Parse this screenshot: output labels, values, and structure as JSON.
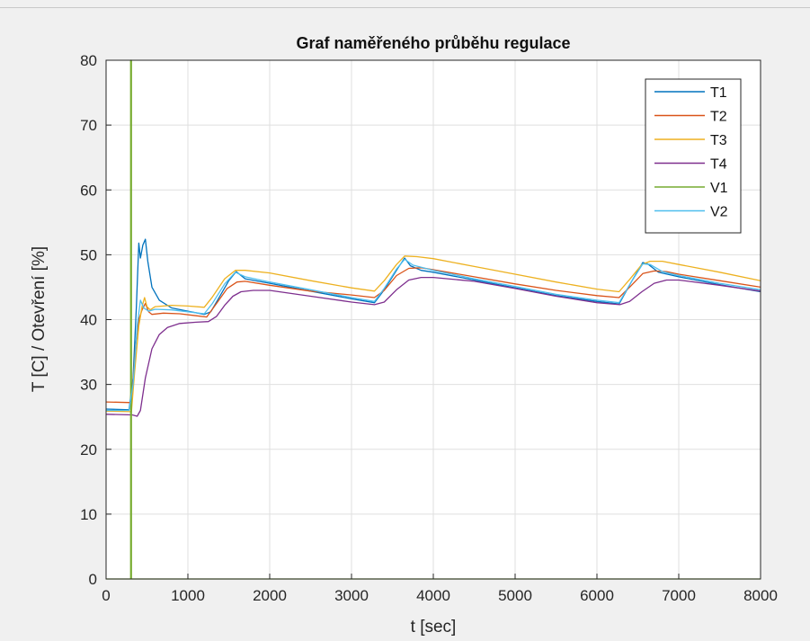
{
  "chart_data": {
    "type": "line",
    "title": "Graf naměřeného průběhu regulace",
    "xlabel": "t [sec]",
    "ylabel": "T [C] / Otevření [%]",
    "xlim": [
      0,
      8000
    ],
    "ylim": [
      0,
      80
    ],
    "xticks": [
      0,
      1000,
      2000,
      3000,
      4000,
      5000,
      6000,
      7000,
      8000
    ],
    "yticks": [
      0,
      10,
      20,
      30,
      40,
      50,
      60,
      70,
      80
    ],
    "grid": true,
    "legend_position": "top-right",
    "series": [
      {
        "name": "T1",
        "color": "#0072bd",
        "points": [
          [
            0,
            26.2
          ],
          [
            280,
            26.1
          ],
          [
            330,
            31
          ],
          [
            370,
            42
          ],
          [
            400,
            51.8
          ],
          [
            420,
            49.5
          ],
          [
            450,
            51.5
          ],
          [
            480,
            52.4
          ],
          [
            510,
            49
          ],
          [
            560,
            45
          ],
          [
            650,
            43
          ],
          [
            800,
            41.8
          ],
          [
            1000,
            41.3
          ],
          [
            1200,
            40.8
          ],
          [
            1280,
            41.2
          ],
          [
            1400,
            43.8
          ],
          [
            1500,
            46
          ],
          [
            1590,
            47.4
          ],
          [
            1700,
            46.3
          ],
          [
            2000,
            45.6
          ],
          [
            2500,
            44.4
          ],
          [
            3000,
            43.2
          ],
          [
            3280,
            42.6
          ],
          [
            3400,
            44.6
          ],
          [
            3560,
            47.8
          ],
          [
            3650,
            49.5
          ],
          [
            3720,
            48.3
          ],
          [
            3850,
            47.6
          ],
          [
            4000,
            47.3
          ],
          [
            4500,
            46.1
          ],
          [
            5000,
            44.9
          ],
          [
            5500,
            43.7
          ],
          [
            6000,
            42.8
          ],
          [
            6270,
            42.4
          ],
          [
            6420,
            45.8
          ],
          [
            6560,
            48.8
          ],
          [
            6620,
            48.6
          ],
          [
            6750,
            47.3
          ],
          [
            7000,
            46.6
          ],
          [
            7500,
            45.4
          ],
          [
            8000,
            44.3
          ]
        ]
      },
      {
        "name": "T2",
        "color": "#d95319",
        "points": [
          [
            0,
            27.3
          ],
          [
            310,
            27.2
          ],
          [
            360,
            36
          ],
          [
            400,
            40
          ],
          [
            440,
            41.5
          ],
          [
            480,
            42.5
          ],
          [
            520,
            41.2
          ],
          [
            560,
            40.8
          ],
          [
            700,
            41
          ],
          [
            900,
            40.9
          ],
          [
            1100,
            40.6
          ],
          [
            1230,
            40.4
          ],
          [
            1350,
            42.5
          ],
          [
            1480,
            44.8
          ],
          [
            1600,
            45.8
          ],
          [
            1700,
            45.9
          ],
          [
            2000,
            45.3
          ],
          [
            2500,
            44.4
          ],
          [
            3000,
            43.8
          ],
          [
            3280,
            43.4
          ],
          [
            3400,
            44.5
          ],
          [
            3550,
            46.8
          ],
          [
            3700,
            47.9
          ],
          [
            3850,
            48
          ],
          [
            4000,
            47.7
          ],
          [
            4500,
            46.6
          ],
          [
            5000,
            45.5
          ],
          [
            5500,
            44.5
          ],
          [
            6000,
            43.7
          ],
          [
            6270,
            43.4
          ],
          [
            6400,
            45
          ],
          [
            6560,
            47.1
          ],
          [
            6700,
            47.5
          ],
          [
            6850,
            47.4
          ],
          [
            7000,
            47
          ],
          [
            7500,
            46
          ],
          [
            8000,
            45
          ]
        ]
      },
      {
        "name": "T3",
        "color": "#edb120",
        "points": [
          [
            0,
            25.9
          ],
          [
            310,
            25.8
          ],
          [
            350,
            32
          ],
          [
            400,
            39
          ],
          [
            440,
            42
          ],
          [
            470,
            43.4
          ],
          [
            500,
            42
          ],
          [
            540,
            41.5
          ],
          [
            600,
            42
          ],
          [
            800,
            42.2
          ],
          [
            1000,
            42.1
          ],
          [
            1200,
            41.9
          ],
          [
            1300,
            43.5
          ],
          [
            1450,
            46.3
          ],
          [
            1580,
            47.6
          ],
          [
            1700,
            47.6
          ],
          [
            2000,
            47.2
          ],
          [
            2500,
            46
          ],
          [
            3000,
            44.9
          ],
          [
            3280,
            44.4
          ],
          [
            3400,
            46
          ],
          [
            3550,
            48.5
          ],
          [
            3650,
            49.8
          ],
          [
            3800,
            49.7
          ],
          [
            4000,
            49.4
          ],
          [
            4500,
            48.2
          ],
          [
            5000,
            47
          ],
          [
            5500,
            45.8
          ],
          [
            6000,
            44.7
          ],
          [
            6270,
            44.3
          ],
          [
            6400,
            46.2
          ],
          [
            6550,
            48.5
          ],
          [
            6650,
            49
          ],
          [
            6800,
            49
          ],
          [
            7000,
            48.5
          ],
          [
            7500,
            47.3
          ],
          [
            8000,
            46
          ]
        ]
      },
      {
        "name": "T4",
        "color": "#7e2f8e",
        "points": [
          [
            0,
            25.4
          ],
          [
            320,
            25.3
          ],
          [
            380,
            25.1
          ],
          [
            420,
            26
          ],
          [
            480,
            31
          ],
          [
            560,
            35.5
          ],
          [
            650,
            37.7
          ],
          [
            750,
            38.8
          ],
          [
            900,
            39.4
          ],
          [
            1100,
            39.6
          ],
          [
            1250,
            39.7
          ],
          [
            1350,
            40.5
          ],
          [
            1450,
            42.2
          ],
          [
            1550,
            43.6
          ],
          [
            1650,
            44.3
          ],
          [
            1800,
            44.5
          ],
          [
            2000,
            44.5
          ],
          [
            2500,
            43.6
          ],
          [
            3000,
            42.7
          ],
          [
            3280,
            42.3
          ],
          [
            3400,
            42.7
          ],
          [
            3550,
            44.6
          ],
          [
            3700,
            46.1
          ],
          [
            3850,
            46.5
          ],
          [
            4000,
            46.5
          ],
          [
            4500,
            45.9
          ],
          [
            5000,
            44.8
          ],
          [
            5500,
            43.6
          ],
          [
            6000,
            42.6
          ],
          [
            6280,
            42.3
          ],
          [
            6400,
            42.8
          ],
          [
            6550,
            44.3
          ],
          [
            6700,
            45.6
          ],
          [
            6850,
            46.1
          ],
          [
            7000,
            46.1
          ],
          [
            7500,
            45.3
          ],
          [
            8000,
            44.4
          ]
        ]
      },
      {
        "name": "V1",
        "color": "#77ac30",
        "points": [
          [
            0,
            0
          ],
          [
            300,
            0
          ],
          [
            300,
            80
          ],
          [
            310,
            80
          ],
          [
            310,
            0
          ],
          [
            8000,
            0
          ]
        ]
      },
      {
        "name": "V2",
        "color": "#4dbeee",
        "points": [
          [
            0,
            26
          ],
          [
            280,
            26
          ],
          [
            330,
            30
          ],
          [
            380,
            39
          ],
          [
            420,
            43
          ],
          [
            460,
            41.8
          ],
          [
            520,
            41.3
          ],
          [
            600,
            41.6
          ],
          [
            800,
            41.5
          ],
          [
            1000,
            41.2
          ],
          [
            1200,
            40.9
          ],
          [
            1300,
            42.5
          ],
          [
            1450,
            45.5
          ],
          [
            1580,
            47.3
          ],
          [
            1700,
            46.6
          ],
          [
            2000,
            45.8
          ],
          [
            2500,
            44.6
          ],
          [
            3000,
            43.4
          ],
          [
            3280,
            42.8
          ],
          [
            3400,
            44.8
          ],
          [
            3550,
            47.8
          ],
          [
            3650,
            49.3
          ],
          [
            3750,
            48.4
          ],
          [
            4000,
            47.6
          ],
          [
            4500,
            46.3
          ],
          [
            5000,
            45.1
          ],
          [
            5500,
            43.9
          ],
          [
            6000,
            43
          ],
          [
            6270,
            42.6
          ],
          [
            6420,
            45.8
          ],
          [
            6560,
            48.6
          ],
          [
            6650,
            48.5
          ],
          [
            6800,
            47.4
          ],
          [
            7000,
            46.8
          ],
          [
            7500,
            45.6
          ],
          [
            8000,
            44.6
          ]
        ]
      }
    ]
  }
}
